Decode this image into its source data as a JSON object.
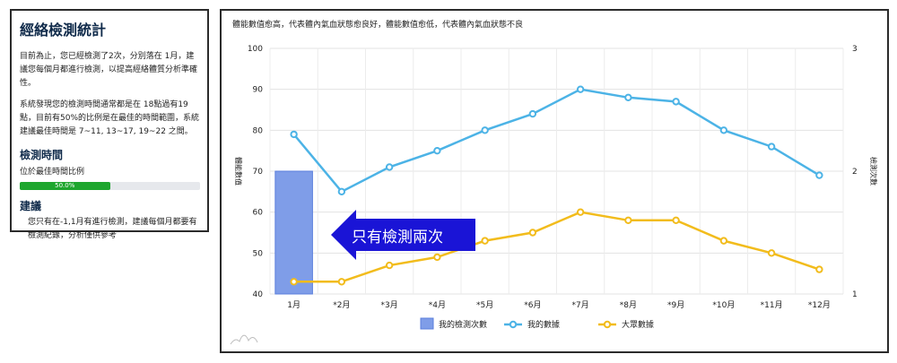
{
  "panel": {
    "title": "經絡檢測統計",
    "para1": "目前為止，您已經檢測了2次，分別落在 1月，建議您每個月都進行檢測，以提高經絡體質分析準確性。",
    "para2": "系統發現您的檢測時間通常都是在 18點過有19點，目前有50%的比例是在最佳的時間範圍，系統建議最佳時間是 7~11, 13~17, 19~22 之間。",
    "section_time": "檢測時間",
    "ratio_label": "位於最佳時間比例",
    "progress": {
      "value": 0.5,
      "label": "50.0%"
    },
    "section_advice": "建議",
    "advice_text": "您只有在-1,1月有進行檢測，建議每個月都要有檢測紀錄，分析僅供參考"
  },
  "annotation": "只有檢測兩次",
  "colors": {
    "my_data": "#4cb3e6",
    "public_data": "#f2bc1c",
    "count_bar": "#7f9de8",
    "arrow": "#1a14d6",
    "progress": "#1ea62e"
  },
  "chart_data": {
    "type": "bar+line",
    "title": "體能數值愈高，代表體內氣血狀態愈良好，體能數值愈低，代表體內氣血狀態不良",
    "categories": [
      "1月",
      "*2月",
      "*3月",
      "*4月",
      "*5月",
      "*6月",
      "*7月",
      "*8月",
      "*9月",
      "*10月",
      "*11月",
      "*12月"
    ],
    "ylabel_left": "體能數值",
    "ylabel_right": "檢測次數",
    "ylim_left": [
      40,
      100
    ],
    "yticks_left": [
      40,
      50,
      60,
      70,
      80,
      90,
      100
    ],
    "ylim_right": [
      1,
      3
    ],
    "yticks_right": [
      1,
      2,
      3
    ],
    "series": [
      {
        "name": "我的檢測次數",
        "type": "bar",
        "axis": "right",
        "values": [
          2,
          null,
          null,
          null,
          null,
          null,
          null,
          null,
          null,
          null,
          null,
          null
        ]
      },
      {
        "name": "我的數據",
        "type": "line",
        "axis": "left",
        "values": [
          79,
          65,
          71,
          75,
          80,
          84,
          90,
          88,
          87,
          80,
          76,
          69
        ]
      },
      {
        "name": "大眾數據",
        "type": "line",
        "axis": "left",
        "values": [
          43,
          43,
          47,
          49,
          53,
          55,
          60,
          58,
          58,
          53,
          50,
          46
        ]
      }
    ],
    "grid": true,
    "legend": "bottom"
  }
}
